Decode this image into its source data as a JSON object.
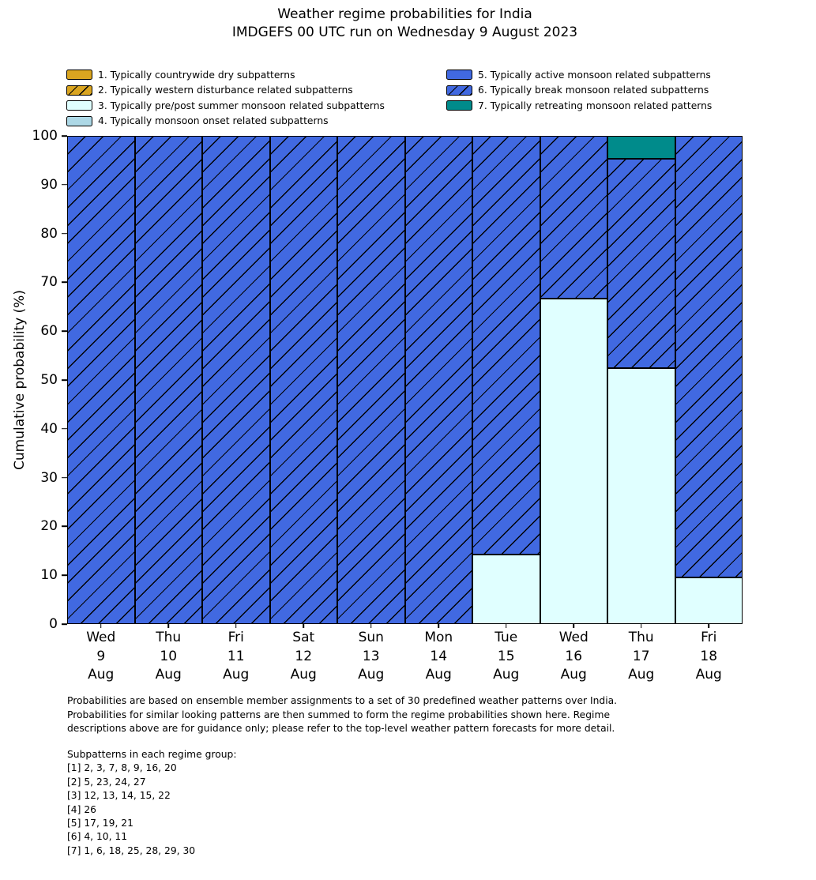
{
  "title": "Weather regime probabilities for India",
  "subtitle": "IMDGEFS 00 UTC run on Wednesday 9 August 2023",
  "chart_data": {
    "type": "bar",
    "stacked": true,
    "title": "Weather regime probabilities for India",
    "subtitle": "IMDGEFS 00 UTC run on Wednesday 9 August 2023",
    "xlabel": "",
    "ylabel": "Cumulative probability (%)",
    "ylim": [
      0,
      100
    ],
    "yticks": [
      0,
      10,
      20,
      30,
      40,
      50,
      60,
      70,
      80,
      90,
      100
    ],
    "grid": false,
    "categories": [
      {
        "day": "Wed",
        "date": "9",
        "month": "Aug"
      },
      {
        "day": "Thu",
        "date": "10",
        "month": "Aug"
      },
      {
        "day": "Fri",
        "date": "11",
        "month": "Aug"
      },
      {
        "day": "Sat",
        "date": "12",
        "month": "Aug"
      },
      {
        "day": "Sun",
        "date": "13",
        "month": "Aug"
      },
      {
        "day": "Mon",
        "date": "14",
        "month": "Aug"
      },
      {
        "day": "Tue",
        "date": "15",
        "month": "Aug"
      },
      {
        "day": "Wed",
        "date": "16",
        "month": "Aug"
      },
      {
        "day": "Thu",
        "date": "17",
        "month": "Aug"
      },
      {
        "day": "Fri",
        "date": "18",
        "month": "Aug"
      }
    ],
    "series": [
      {
        "regime": 3,
        "name": "3. Typically pre/post summer monsoon related subpatterns",
        "color": "#E0FFFF",
        "hatch": false,
        "values": [
          0,
          0,
          0,
          0,
          0,
          0,
          14.29,
          66.67,
          52.38,
          9.52
        ]
      },
      {
        "regime": 6,
        "name": "6. Typically break monsoon related subpatterns",
        "color": "#4169E1",
        "hatch": true,
        "values": [
          100,
          100,
          100,
          100,
          100,
          100,
          85.71,
          33.33,
          42.86,
          90.48
        ]
      },
      {
        "regime": 7,
        "name": "7. Typically retreating monsoon related patterns",
        "color": "#008B8B",
        "hatch": false,
        "values": [
          0,
          0,
          0,
          0,
          0,
          0,
          0,
          0,
          4.76,
          0
        ]
      }
    ],
    "legend": {
      "position": "above",
      "column_split": 4,
      "items": [
        {
          "regime": 1,
          "label": "1. Typically countrywide dry subpatterns",
          "color": "#DAA520",
          "hatch": false
        },
        {
          "regime": 2,
          "label": "2. Typically western disturbance related subpatterns",
          "color": "#DAA520",
          "hatch": true
        },
        {
          "regime": 3,
          "label": "3. Typically pre/post summer monsoon related subpatterns",
          "color": "#E0FFFF",
          "hatch": false
        },
        {
          "regime": 4,
          "label": "4. Typically monsoon onset related subpatterns",
          "color": "#ADD8E6",
          "hatch": false
        },
        {
          "regime": 5,
          "label": "5. Typically active monsoon related subpatterns",
          "color": "#4169E1",
          "hatch": false
        },
        {
          "regime": 6,
          "label": "6. Typically break monsoon related subpatterns",
          "color": "#4169E1",
          "hatch": true
        },
        {
          "regime": 7,
          "label": "7. Typically retreating monsoon related patterns",
          "color": "#008B8B",
          "hatch": false
        }
      ]
    }
  },
  "notes": {
    "paragraph": [
      "Probabilities are based on ensemble member assignments to a set of 30 predefined weather patterns over India.",
      "Probabilities for similar looking patterns are then summed to form the regime probabilities shown here. Regime",
      "descriptions above are for guidance only; please refer to the top-level weather pattern forecasts for more detail."
    ],
    "subpatterns_header": "Subpatterns in each regime group:",
    "subpatterns": [
      "[1] 2, 3, 7, 8, 9, 16, 20",
      "[2] 5, 23, 24, 27",
      "[3] 12, 13, 14, 15, 22",
      "[4] 26",
      "[5] 17, 19, 21",
      "[6] 4, 10, 11",
      "[7] 1, 6, 18, 25, 28, 29, 30"
    ]
  },
  "colors": {
    "regime_1_dry": "#DAA520",
    "regime_3_prepost_monsoon": "#E0FFFF",
    "regime_4_onset": "#ADD8E6",
    "regime_5_active": "#4169E1",
    "regime_6_break": "#4169E1",
    "regime_7_retreating": "#008B8B",
    "edge": "#000000",
    "background": "#FFFFFF"
  }
}
